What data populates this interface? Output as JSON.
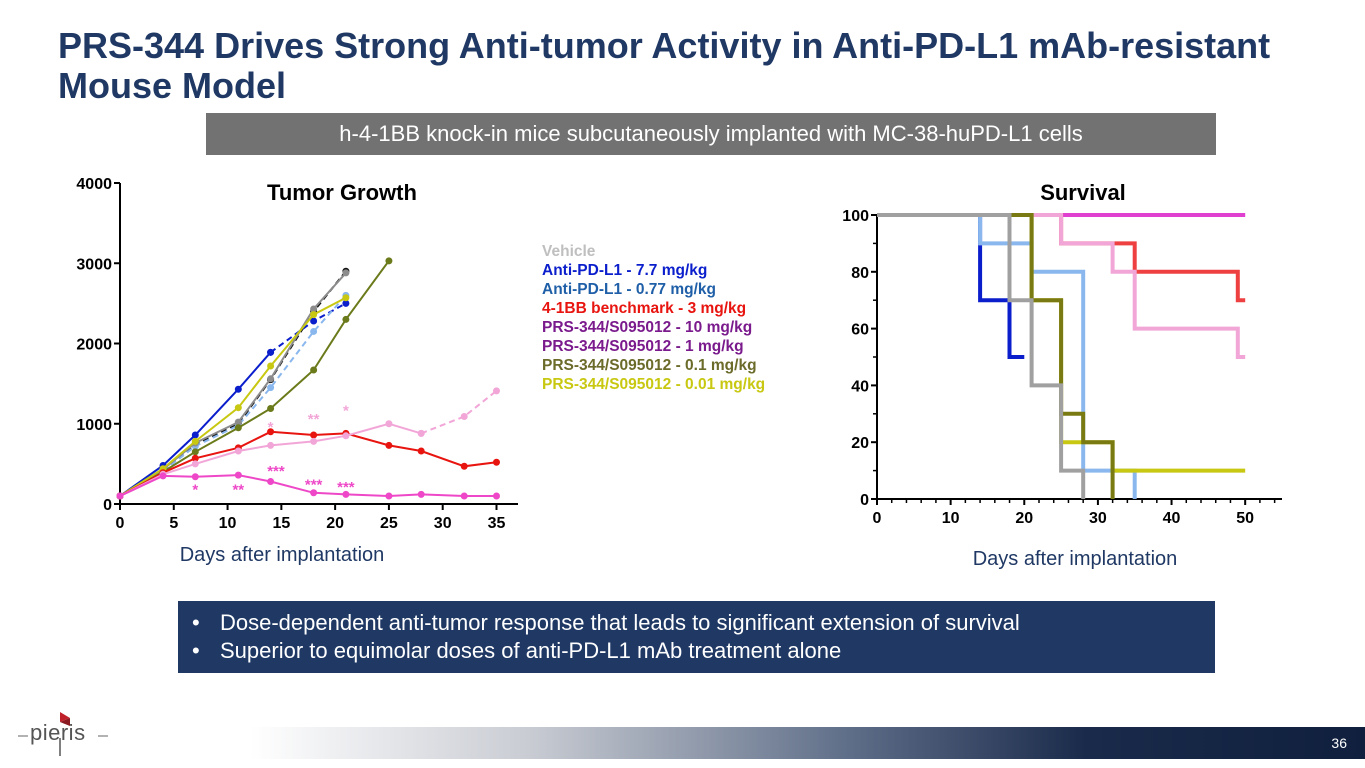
{
  "slide": {
    "title": "PRS-344 Drives Strong Anti-tumor Activity in Anti-PD-L1 mAb-resistant Mouse Model",
    "subtitle": "h-4-1BB knock-in mice subcutaneously implanted with MC-38-huPD-L1 cells",
    "bullets": [
      "Dose-dependent anti-tumor response that leads to significant extension of survival",
      "Superior to equimolar doses of anti-PD-L1 mAb treatment alone"
    ],
    "page_number": "36",
    "logo_text": "pieris"
  },
  "legend": [
    {
      "label": "Vehicle",
      "color": "#bfbfbf"
    },
    {
      "label": "Anti-PD-L1 - 7.7 mg/kg",
      "color": "#0a1ecc"
    },
    {
      "label": "Anti-PD-L1 - 0.77 mg/kg",
      "color": "#1f5fa8"
    },
    {
      "label": "4-1BB benchmark - 3 mg/kg",
      "color": "#e8140f"
    },
    {
      "label": "PRS-344/S095012 - 10 mg/kg",
      "color": "#7a1a8c"
    },
    {
      "label": "PRS-344/S095012 - 1 mg/kg",
      "color": "#7a1a8c"
    },
    {
      "label": "PRS-344/S095012 - 0.1 mg/kg",
      "color": "#6b6b2a"
    },
    {
      "label": "PRS-344/S095012 - 0.01 mg/kg",
      "color": "#c8c812"
    }
  ],
  "chart_data": [
    {
      "type": "line",
      "title": "Tumor Growth",
      "xlabel": "Days after implantation",
      "ylabel": "",
      "xlim": [
        0,
        37
      ],
      "ylim": [
        0,
        4000
      ],
      "xticks": [
        0,
        5,
        10,
        15,
        20,
        25,
        30,
        35
      ],
      "yticks": [
        0,
        1000,
        2000,
        3000,
        4000
      ],
      "series": [
        {
          "color": "#111111",
          "dashed": true,
          "x": [
            0,
            4,
            7,
            11,
            14,
            18,
            21
          ],
          "y": [
            100,
            420,
            740,
            1000,
            1550,
            2400,
            2900
          ]
        },
        {
          "color": "#0a1ecc",
          "dashed": false,
          "x": [
            0,
            4,
            7,
            11,
            14
          ],
          "y": [
            100,
            480,
            860,
            1430,
            1890
          ]
        },
        {
          "color": "#0a1ecc",
          "dashed": true,
          "x": [
            14,
            18,
            21
          ],
          "y": [
            1890,
            2280,
            2500
          ]
        },
        {
          "color": "#8ab8ee",
          "dashed": true,
          "x": [
            0,
            4,
            7,
            11,
            14,
            18,
            21
          ],
          "y": [
            100,
            410,
            720,
            980,
            1450,
            2150,
            2600
          ]
        },
        {
          "color": "#8c8c8c",
          "dashed": false,
          "x": [
            0,
            4,
            7,
            11,
            14,
            18,
            21
          ],
          "y": [
            100,
            430,
            760,
            1020,
            1560,
            2430,
            2880
          ]
        },
        {
          "color": "#6b7a1a",
          "dashed": false,
          "x": [
            0,
            4,
            7,
            11,
            14,
            18,
            21,
            25
          ],
          "y": [
            100,
            400,
            650,
            950,
            1190,
            1670,
            2300,
            3030
          ]
        },
        {
          "color": "#c8c812",
          "dashed": false,
          "x": [
            0,
            4,
            7,
            11,
            14,
            18,
            21
          ],
          "y": [
            100,
            440,
            780,
            1200,
            1720,
            2360,
            2570
          ]
        },
        {
          "color": "#e8140f",
          "dashed": false,
          "x": [
            0,
            4,
            7,
            11,
            14,
            18,
            21,
            25,
            28,
            32,
            35
          ],
          "y": [
            100,
            390,
            570,
            700,
            900,
            860,
            880,
            730,
            660,
            470,
            520
          ]
        },
        {
          "color": "#f2a6d8",
          "dashed": false,
          "x": [
            0,
            4,
            7,
            11,
            14,
            18,
            21,
            25,
            28
          ],
          "y": [
            100,
            370,
            500,
            660,
            730,
            780,
            850,
            1000,
            880
          ]
        },
        {
          "color": "#f2a6d8",
          "dashed": true,
          "x": [
            28,
            32,
            35
          ],
          "y": [
            880,
            1090,
            1410
          ]
        },
        {
          "color": "#ee48c8",
          "dashed": false,
          "x": [
            0,
            4,
            7,
            11,
            14,
            18,
            21,
            25,
            28,
            32,
            35
          ],
          "y": [
            100,
            350,
            340,
            360,
            280,
            140,
            120,
            100,
            120,
            100,
            100
          ]
        }
      ],
      "annotations": [
        {
          "text": "*",
          "x": 7,
          "y": 120,
          "color": "#ee48c8"
        },
        {
          "text": "**",
          "x": 11,
          "y": 120,
          "color": "#ee48c8"
        },
        {
          "text": "***",
          "x": 14.5,
          "y": 350,
          "color": "#ee48c8"
        },
        {
          "text": "***",
          "x": 18,
          "y": 180,
          "color": "#ee48c8"
        },
        {
          "text": "***",
          "x": 21,
          "y": 150,
          "color": "#ee48c8"
        },
        {
          "text": "**",
          "x": 18,
          "y": 1000,
          "color": "#f2a6d8"
        },
        {
          "text": "*",
          "x": 21,
          "y": 1100,
          "color": "#f2a6d8"
        },
        {
          "text": "*",
          "x": 14,
          "y": 900,
          "color": "#f2a6d8"
        }
      ]
    },
    {
      "type": "line",
      "title": "Survival",
      "xlabel": "Days after implantation",
      "ylabel": "",
      "xlim": [
        0,
        55
      ],
      "ylim": [
        0,
        100
      ],
      "xticks": [
        0,
        10,
        20,
        30,
        40,
        50
      ],
      "yticks": [
        0,
        20,
        40,
        60,
        80,
        100
      ],
      "step": true,
      "series": [
        {
          "color": "#e040d0",
          "x": [
            0,
            50
          ],
          "y": [
            100,
            100
          ]
        },
        {
          "color": "#ee4040",
          "x": [
            0,
            18,
            25,
            35,
            49,
            50
          ],
          "y": [
            100,
            100,
            90,
            80,
            70,
            70
          ]
        },
        {
          "color": "#f2a6d8",
          "x": [
            0,
            25,
            32,
            35,
            49,
            50
          ],
          "y": [
            100,
            90,
            80,
            60,
            50,
            50
          ]
        },
        {
          "color": "#0a1ecc",
          "x": [
            0,
            14,
            18,
            20
          ],
          "y": [
            100,
            70,
            50,
            50
          ]
        },
        {
          "color": "#8ab8ee",
          "x": [
            0,
            14,
            21,
            28,
            35
          ],
          "y": [
            100,
            90,
            80,
            10,
            0
          ]
        },
        {
          "color": "#c8c812",
          "x": [
            0,
            21,
            25,
            32,
            50
          ],
          "y": [
            100,
            70,
            20,
            10,
            10
          ]
        },
        {
          "color": "#7a7a12",
          "x": [
            0,
            21,
            25,
            28,
            32
          ],
          "y": [
            100,
            70,
            30,
            20,
            0
          ]
        },
        {
          "color": "#a0a0a0",
          "x": [
            0,
            18,
            21,
            25,
            28
          ],
          "y": [
            100,
            70,
            40,
            10,
            0
          ]
        }
      ]
    }
  ]
}
